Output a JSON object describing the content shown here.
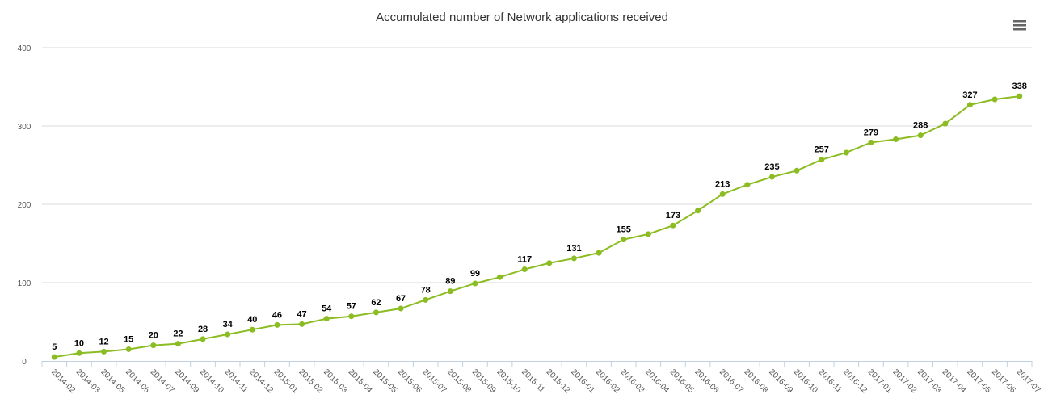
{
  "chart_data": {
    "type": "line",
    "title": "Accumulated number of Network applications received",
    "categories": [
      "2014-02",
      "2014-03",
      "2014-05",
      "2014-06",
      "2014-07",
      "2014-09",
      "2014-10",
      "2014-11",
      "2014-12",
      "2015-01",
      "2015-02",
      "2015-03",
      "2015-04",
      "2015-05",
      "2015-06",
      "2015-07",
      "2015-08",
      "2015-09",
      "2015-10",
      "2015-11",
      "2015-12",
      "2016-01",
      "2016-02",
      "2016-03",
      "2016-04",
      "2016-05",
      "2016-06",
      "2016-07",
      "2016-08",
      "2016-09",
      "2016-10",
      "2016-11",
      "2016-12",
      "2017-01",
      "2017-02",
      "2017-03",
      "2017-04",
      "2017-05",
      "2017-06",
      "2017-07"
    ],
    "values": [
      5,
      10,
      12,
      15,
      20,
      22,
      28,
      34,
      40,
      46,
      47,
      54,
      57,
      62,
      67,
      78,
      89,
      99,
      107,
      117,
      125,
      131,
      138,
      155,
      162,
      173,
      192,
      213,
      225,
      235,
      243,
      257,
      266,
      279,
      283,
      288,
      303,
      327,
      334,
      338
    ],
    "value_labels": [
      "5",
      "10",
      "12",
      "15",
      "20",
      "22",
      "28",
      "34",
      "40",
      "46",
      "47",
      "54",
      "57",
      "62",
      "67",
      "78",
      "89",
      "99",
      null,
      "117",
      null,
      "131",
      null,
      "155",
      null,
      "173",
      null,
      "213",
      null,
      "235",
      null,
      "257",
      null,
      "279",
      null,
      "288",
      null,
      "327",
      null,
      "338"
    ],
    "color": "#8bbc21",
    "ylim": [
      0,
      400
    ],
    "yticks": [
      0,
      100,
      200,
      300,
      400
    ],
    "grid": true
  }
}
